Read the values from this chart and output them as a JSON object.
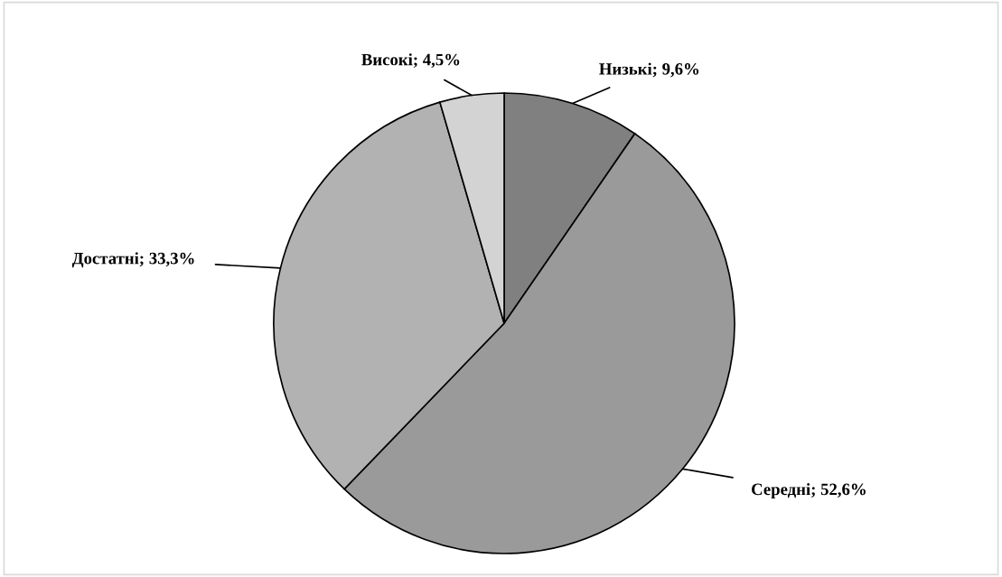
{
  "chart_data": {
    "type": "pie",
    "categories": [
      "Низькі",
      "Середні",
      "Достатні",
      "Високі"
    ],
    "values": [
      9.6,
      52.6,
      33.3,
      4.5
    ],
    "colors": [
      "#808080",
      "#9a9a9a",
      "#b2b2b2",
      "#d3d3d3"
    ],
    "value_labels": [
      "9,6%",
      "52,6%",
      "33,3%",
      "4,5%"
    ]
  }
}
